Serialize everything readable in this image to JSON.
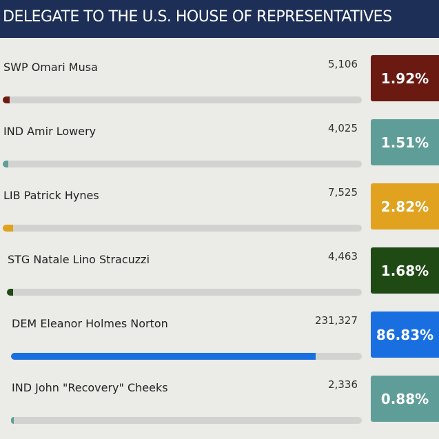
{
  "chart_data": {
    "type": "bar",
    "title": "DELEGATE TO THE U.S. HOUSE OF REPRESENTATIVES",
    "categories": [
      "SWP Omari Musa",
      "IND Amir Lowery",
      "LIB Patrick Hynes",
      "STG Natale Lino Stracuzzi",
      "DEM Eleanor Holmes Norton",
      "IND John \"Recovery\" Cheeks"
    ],
    "values": [
      1.92,
      1.51,
      2.82,
      1.68,
      86.83,
      0.88
    ],
    "value_labels": [
      "1.92%",
      "1.51%",
      "2.82%",
      "1.68%",
      "86.83%",
      "0.88%"
    ],
    "votes": [
      5106,
      4025,
      7525,
      4463,
      231327,
      2336
    ],
    "vote_labels": [
      "5,106",
      "4,025",
      "7,525",
      "4,463",
      "231,327",
      "2,336"
    ],
    "colors": [
      "#6b1a12",
      "#5f9e98",
      "#e0a21f",
      "#1f4a14",
      "#1a6fe0",
      "#5f9e98"
    ],
    "xlim": [
      0,
      100
    ]
  }
}
